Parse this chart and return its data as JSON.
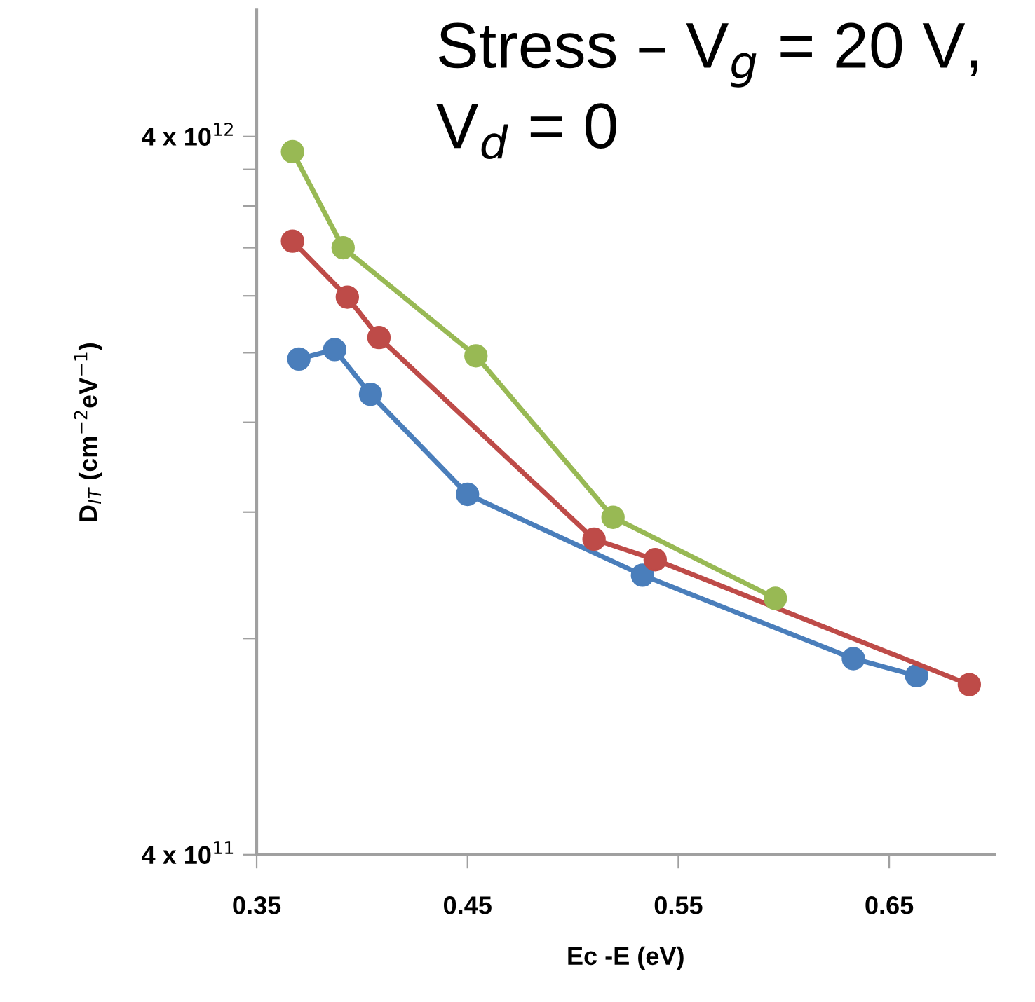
{
  "chart_data": {
    "type": "line",
    "xlabel": "Ec -E (eV)",
    "ylabel": "D$_{IT}$ (cm$^{−2}$eV$^{−1}$)",
    "log": "y",
    "marker": "circle",
    "line_style": "solid",
    "grid": false,
    "legend": false,
    "xlim": [
      0.35,
      0.7
    ],
    "xticks": [
      0.35,
      0.45,
      0.55,
      0.65
    ],
    "ylim": [
      400000000000.0,
      6000000000000.0
    ],
    "yticks": [
      {
        "value": 400000000000.0,
        "label": "4 x 10$^{11}$"
      },
      {
        "value": 800000000000.0,
        "label": null
      },
      {
        "value": 1200000000000.0,
        "label": null
      },
      {
        "value": 1600000000000.0,
        "label": null
      },
      {
        "value": 2000000000000.0,
        "label": null
      },
      {
        "value": 2400000000000.0,
        "label": null
      },
      {
        "value": 2800000000000.0,
        "label": null
      },
      {
        "value": 3200000000000.0,
        "label": null
      },
      {
        "value": 3600000000000.0,
        "label": null
      },
      {
        "value": 4000000000000.0,
        "label": "4 x 10$^{12}$"
      }
    ],
    "annotations": [
      "Stress – V$_{g}$ = 20 V,\nV$_{d}$ = 0"
    ],
    "series": [
      {
        "color": "#4a7ebb",
        "x": [
          0.37,
          0.387,
          0.404,
          0.45,
          0.533,
          0.633,
          0.663
        ],
        "values": [
          1960000000000.0,
          2020000000000.0,
          1750000000000.0,
          1270000000000.0,
          980000000000.0,
          750000000000.0,
          710000000000.0
        ]
      },
      {
        "color": "#be4b48",
        "x": [
          0.367,
          0.393,
          0.408,
          0.51,
          0.539,
          0.688
        ],
        "values": [
          2860000000000.0,
          2390000000000.0,
          2100000000000.0,
          1100000000000.0,
          1030000000000.0,
          690000000000.0
        ]
      },
      {
        "color": "#98b954",
        "x": [
          0.367,
          0.391,
          0.454,
          0.519,
          0.596
        ],
        "values": [
          3810000000000.0,
          2800000000000.0,
          1980000000000.0,
          1180000000000.0,
          910000000000.0
        ]
      }
    ]
  }
}
